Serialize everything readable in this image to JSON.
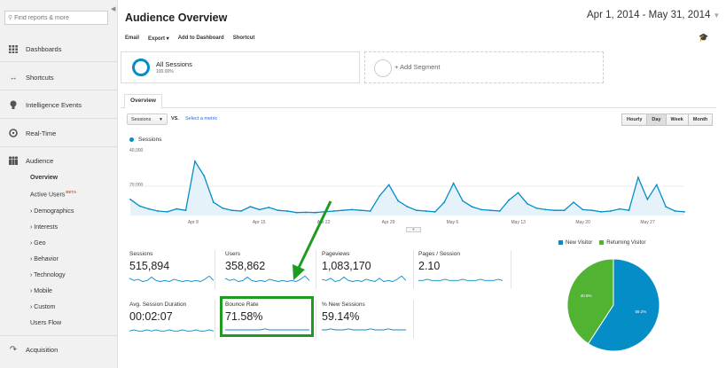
{
  "sidebar": {
    "search_placeholder": "Find reports & more",
    "sections": [
      {
        "label": "Dashboards",
        "icon": "grid-icon"
      },
      {
        "label": "Shortcuts",
        "icon": "arrows-icon"
      },
      {
        "label": "Intelligence Events",
        "icon": "bulb-icon"
      },
      {
        "label": "Real-Time",
        "icon": "clock-icon"
      },
      {
        "label": "Audience",
        "icon": "people-icon"
      }
    ],
    "audience_items": {
      "overview": "Overview",
      "active_users": "Active Users",
      "beta": "BETA",
      "demographics": "› Demographics",
      "interests": "› Interests",
      "geo": "› Geo",
      "behavior": "› Behavior",
      "technology": "› Technology",
      "mobile": "› Mobile",
      "custom": "› Custom",
      "users_flow": "Users Flow"
    },
    "acquisition": "Acquisition"
  },
  "header": {
    "title": "Audience Overview",
    "date_range": "Apr 1, 2014 - May 31, 2014"
  },
  "toolbar": {
    "email": "Email",
    "export": "Export ▾",
    "add_dashboard": "Add to Dashboard",
    "shortcut": "Shortcut"
  },
  "segments": {
    "all_sessions": "All Sessions",
    "all_pct": "100.00%",
    "add_segment": "+ Add Segment"
  },
  "tabs": {
    "overview": "Overview"
  },
  "controls": {
    "metric": "Sessions",
    "vs": "VS.",
    "select_metric": "Select a metric",
    "granularity": [
      "Hourly",
      "Day",
      "Week",
      "Month"
    ],
    "active_granularity": "Day"
  },
  "chart_data": [
    {
      "type": "line",
      "series_legend": "Sessions",
      "color": "#058dc7",
      "y_ticks": [
        "40,000",
        "20,000"
      ],
      "ylim": [
        0,
        40000
      ],
      "x_ticks": [
        "Apr 8",
        "Apr 15",
        "Apr 22",
        "Apr 29",
        "May 6",
        "May 13",
        "May 20",
        "May 27"
      ],
      "x": [
        "Apr 1",
        "Apr 2",
        "Apr 3",
        "Apr 4",
        "Apr 5",
        "Apr 6",
        "Apr 7",
        "Apr 8",
        "Apr 9",
        "Apr 10",
        "Apr 11",
        "Apr 12",
        "Apr 13",
        "Apr 14",
        "Apr 15",
        "Apr 16",
        "Apr 17",
        "Apr 18",
        "Apr 19",
        "Apr 20",
        "Apr 21",
        "Apr 22",
        "Apr 23",
        "Apr 24",
        "Apr 25",
        "Apr 26",
        "Apr 27",
        "Apr 28",
        "Apr 29",
        "Apr 30",
        "May 1",
        "May 2",
        "May 3",
        "May 4",
        "May 5",
        "May 6",
        "May 7",
        "May 8",
        "May 9",
        "May 10",
        "May 11",
        "May 12",
        "May 13",
        "May 14",
        "May 15",
        "May 16",
        "May 17",
        "May 18",
        "May 19",
        "May 20",
        "May 21",
        "May 22",
        "May 23",
        "May 24",
        "May 25",
        "May 26",
        "May 27",
        "May 28",
        "May 29",
        "May 30",
        "May 31"
      ],
      "values": [
        11000,
        6500,
        4500,
        3000,
        2500,
        4500,
        3500,
        37000,
        27000,
        9000,
        5000,
        3500,
        3000,
        6000,
        4000,
        5500,
        3500,
        3000,
        2000,
        2200,
        2000,
        2500,
        3000,
        3500,
        4000,
        3500,
        3000,
        13500,
        21000,
        10000,
        6000,
        3500,
        3000,
        2500,
        9000,
        22000,
        10000,
        6000,
        4000,
        3500,
        3000,
        10500,
        15500,
        8000,
        5000,
        4000,
        3500,
        3500,
        9000,
        4000,
        3500,
        2500,
        3000,
        4500,
        3500,
        26000,
        11000,
        21000,
        6000,
        3000,
        2500
      ]
    },
    {
      "type": "pie",
      "legend": [
        "New Visitor",
        "Returning Visitor"
      ],
      "colors": [
        "#058dc7",
        "#50b432"
      ],
      "values": [
        59.2,
        40.8
      ],
      "labels": [
        "59.2%",
        "40.8%"
      ]
    }
  ],
  "metrics": [
    {
      "label": "Sessions",
      "value": "515,894",
      "spark": [
        5,
        3,
        4,
        2,
        3,
        6,
        3,
        2,
        3,
        2,
        4,
        3,
        2,
        3,
        2,
        3,
        2,
        4,
        7,
        3
      ]
    },
    {
      "label": "Users",
      "value": "358,862",
      "spark": [
        5,
        3,
        4,
        2,
        3,
        6,
        3,
        2,
        3,
        2,
        4,
        3,
        2,
        3,
        2,
        3,
        2,
        4,
        7,
        3
      ]
    },
    {
      "label": "Pageviews",
      "value": "1,083,170",
      "spark": [
        4,
        3,
        5,
        2,
        3,
        6,
        3,
        2,
        3,
        2,
        4,
        3,
        2,
        5,
        2,
        3,
        2,
        4,
        7,
        3
      ]
    },
    {
      "label": "Pages / Session",
      "value": "2.10",
      "spark": [
        3,
        3,
        4,
        3,
        3,
        3,
        4,
        3,
        3,
        3,
        4,
        3,
        3,
        3,
        4,
        3,
        3,
        3,
        4,
        3
      ]
    },
    {
      "label": "Avg. Session Duration",
      "value": "00:02:07",
      "spark": [
        3,
        4,
        3,
        3,
        4,
        3,
        4,
        3,
        3,
        4,
        3,
        3,
        4,
        3,
        3,
        4,
        3,
        3,
        4,
        3
      ]
    },
    {
      "label": "Bounce Rate",
      "value": "71.58%",
      "spark": [
        4,
        4,
        4,
        4,
        4,
        4,
        4,
        4,
        4,
        5,
        4,
        4,
        4,
        4,
        4,
        4,
        4,
        4,
        4,
        4
      ]
    },
    {
      "label": "% New Sessions",
      "value": "59.14%",
      "spark": [
        4,
        4,
        5,
        4,
        4,
        4,
        5,
        4,
        4,
        4,
        4,
        5,
        4,
        4,
        4,
        5,
        4,
        4,
        4,
        4
      ]
    }
  ]
}
